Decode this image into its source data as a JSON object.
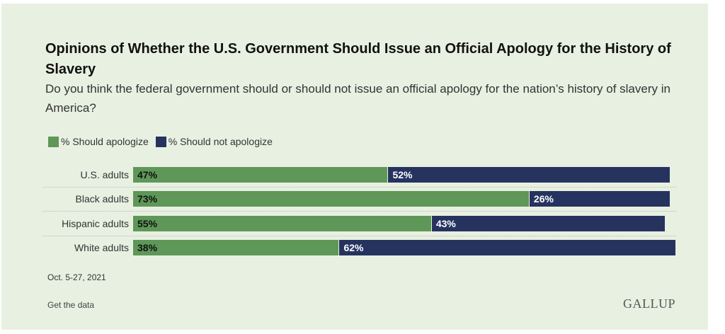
{
  "title": "Opinions of Whether the U.S. Government Should Issue an Official Apology for the History of Slavery",
  "subtitle": "Do you think the federal government should or should not issue an official apology for the nation’s history of slavery in America?",
  "date": "Oct. 5-27, 2021",
  "get_data": "Get the data",
  "logo": "GALLUP",
  "chart_data": {
    "type": "bar",
    "orientation": "horizontal",
    "stacked": true,
    "legend_position": "top-left",
    "grid": false,
    "categories": [
      "U.S. adults",
      "Black adults",
      "Hispanic adults",
      "White adults"
    ],
    "series": [
      {
        "name": "% Should apologize",
        "color": "#5e9758",
        "values": [
          47,
          73,
          55,
          38
        ],
        "labels": [
          "47%",
          "73%",
          "55%",
          "38%"
        ]
      },
      {
        "name": "% Should not apologize",
        "color": "#26335f",
        "values": [
          52,
          26,
          43,
          62
        ],
        "labels": [
          "52%",
          "26%",
          "43%",
          "62%"
        ]
      }
    ]
  }
}
